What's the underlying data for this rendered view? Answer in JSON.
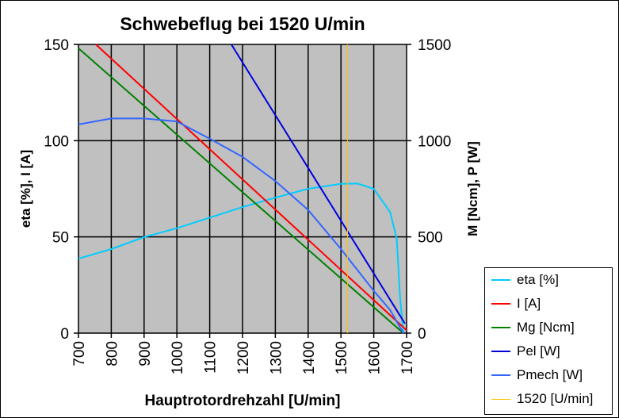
{
  "chart_data": {
    "type": "line",
    "title": "Schwebeflug bei 1520 U/min",
    "xlabel": "Hauptrotordrehzahl [U/min]",
    "ylabel": "eta [%], I [A]",
    "y2label": "M [Ncm], P [W]",
    "xlim": [
      700,
      1700
    ],
    "ylim": [
      0,
      150
    ],
    "y2lim": [
      0,
      1500
    ],
    "xticks": [
      "700",
      "800",
      "900",
      "1000",
      "1100",
      "1200",
      "1300",
      "1400",
      "1500",
      "1600",
      "1700"
    ],
    "yticks": [
      "0",
      "50",
      "100",
      "150"
    ],
    "y2ticks": [
      "0",
      "500",
      "1000",
      "1500"
    ],
    "grid": true,
    "plot_bg": "#c0c0c0",
    "legend_position": "right",
    "series": [
      {
        "name": "eta [%]",
        "color": "#00ccff",
        "axis": "left",
        "x": [
          700,
          800,
          900,
          1000,
          1100,
          1200,
          1300,
          1400,
          1500,
          1550,
          1600,
          1650,
          1670,
          1680,
          1690
        ],
        "y": [
          38.7,
          43.7,
          49.9,
          54.5,
          60,
          65.5,
          70.4,
          75,
          77.6,
          77.7,
          75,
          62.8,
          49,
          19,
          0
        ]
      },
      {
        "name": "I [A]",
        "color": "#ff0000",
        "axis": "left",
        "x": [
          753,
          1700
        ],
        "y": [
          150,
          1.5
        ]
      },
      {
        "name": "Mg [Ncm]",
        "color": "#008000",
        "axis": "right",
        "x": [
          700,
          1690
        ],
        "y": [
          1480,
          0
        ]
      },
      {
        "name": "Pel [W]",
        "color": "#0000dd",
        "axis": "right",
        "x": [
          1166,
          1695
        ],
        "y": [
          1500,
          50
        ]
      },
      {
        "name": "Pmech [W]",
        "color": "#3366ff",
        "axis": "right",
        "x": [
          700,
          800,
          900,
          1000,
          1100,
          1200,
          1300,
          1400,
          1500,
          1600,
          1650,
          1690
        ],
        "y": [
          1084,
          1115,
          1115,
          1100,
          1010,
          916,
          790,
          640,
          437,
          220,
          120,
          0
        ]
      },
      {
        "name": "1520 [U/min]",
        "color": "#ffc000",
        "axis": "left",
        "x": [
          1520,
          1520
        ],
        "y": [
          0,
          150
        ]
      }
    ]
  }
}
